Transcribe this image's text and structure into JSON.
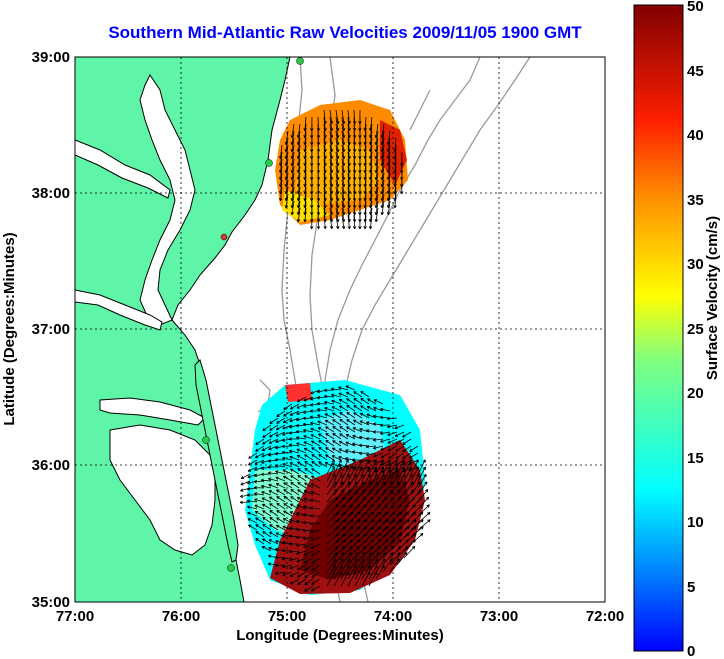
{
  "title": "Southern Mid-Atlantic Raw Velocities 2009/11/05 1900 GMT",
  "xlabel": "Longitude (Degrees:Minutes)",
  "ylabel": "Latitude (Degrees:Minutes)",
  "colorbar_label": "Surface Velocity (cm/s)",
  "x_ticks": [
    "77:00",
    "76:00",
    "75:00",
    "74:00",
    "73:00",
    "72:00"
  ],
  "y_ticks": [
    "39:00",
    "38:00",
    "37:00",
    "36:00",
    "35:00"
  ],
  "colorbar_ticks": [
    "50",
    "45",
    "40",
    "35",
    "30",
    "25",
    "20",
    "15",
    "10",
    "5",
    "0"
  ],
  "colors": {
    "land": "#5ef5a8",
    "water": "#ffffff",
    "title": "#0000ff",
    "bathymetry": "#9a9a9a",
    "coastline": "#000000",
    "station": "#22cc44"
  },
  "map": {
    "lon_range": [
      -77.0,
      -72.0
    ],
    "lat_range": [
      35.0,
      39.0
    ],
    "grid": true,
    "colormap": "jet",
    "velocity_range_cm_s": [
      0,
      50
    ]
  }
}
